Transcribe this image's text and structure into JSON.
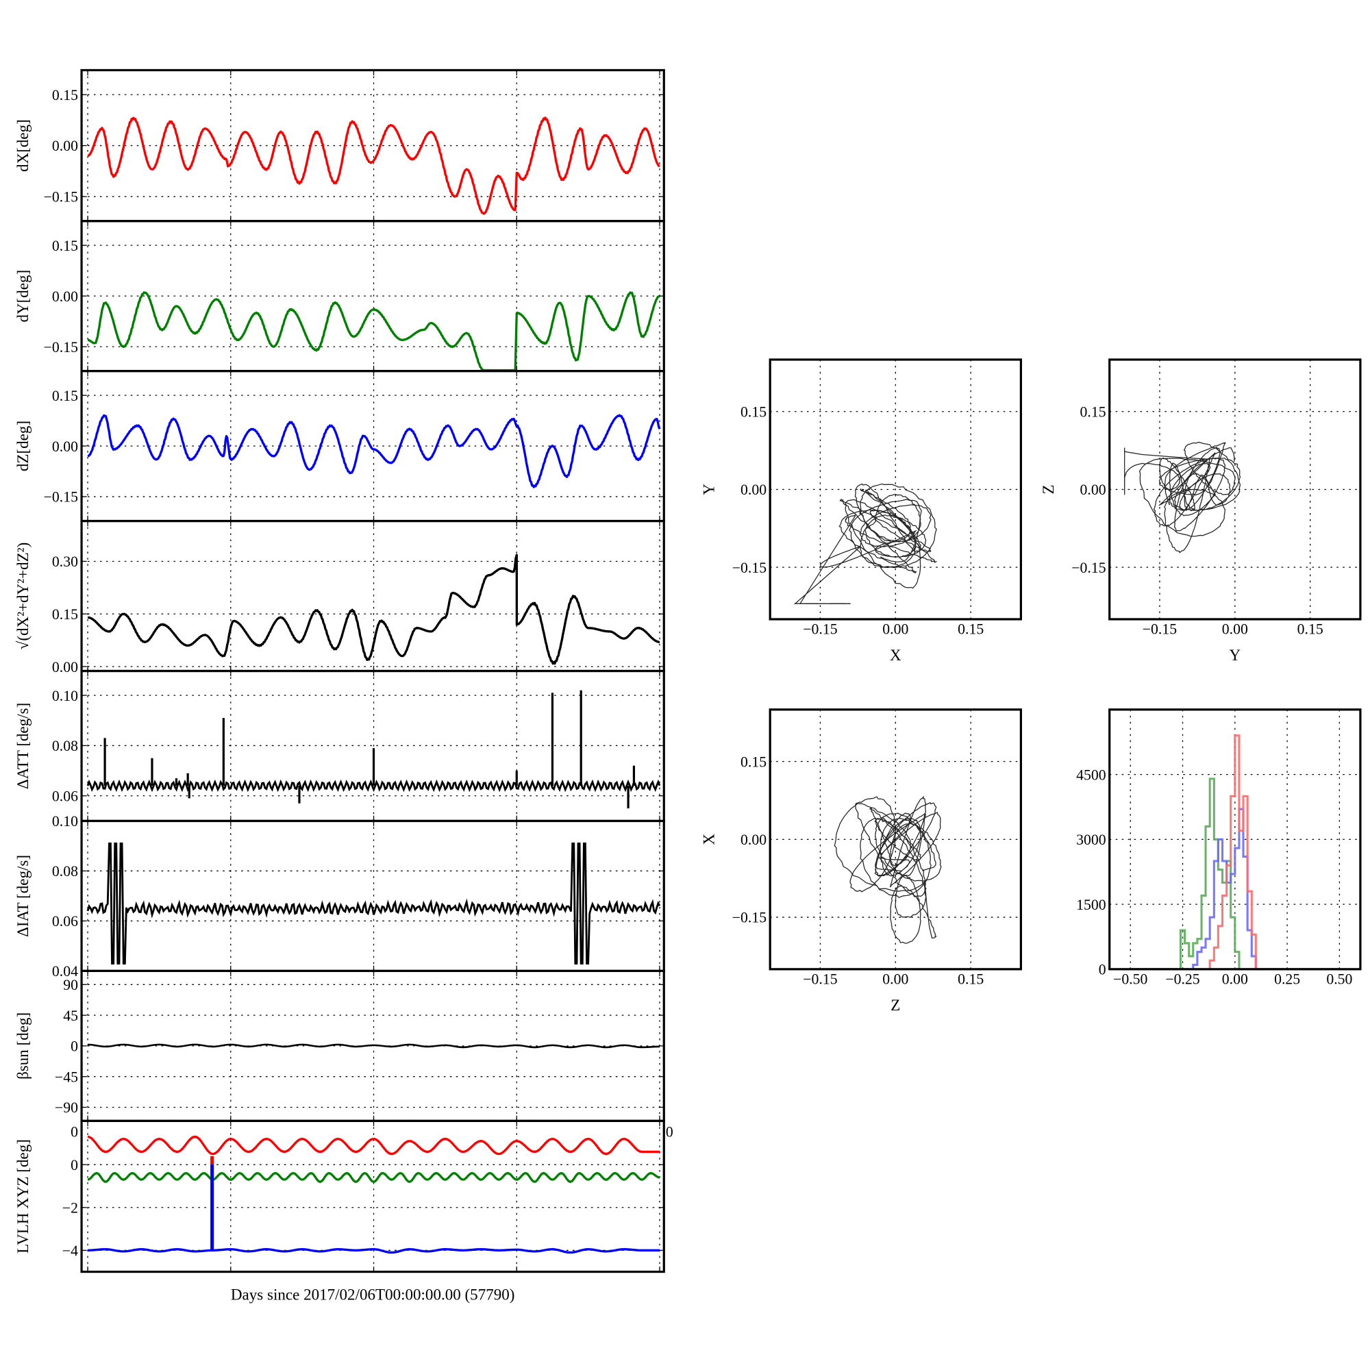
{
  "xlabel": "Days since 2017/02/06T00:00:00.00 (57790)",
  "chart_data": [
    {
      "id": "dx",
      "type": "line",
      "ylabel": "dX[deg]",
      "ylim": [
        -0.222,
        0.222
      ],
      "xlim": [
        -0.043,
        4.03
      ],
      "yticks": [
        0.15,
        0.0,
        -0.15
      ],
      "ytick_labels": [
        "0.15",
        "0.00",
        "−0.15"
      ],
      "series": [
        {
          "name": "dX",
          "color": "#ff0000",
          "x": [
            0,
            0.1,
            0.18,
            0.32,
            0.45,
            0.58,
            0.7,
            0.82,
            0.97,
            0.98,
            1.1,
            1.25,
            1.35,
            1.48,
            1.6,
            1.73,
            1.85,
            1.98,
            2.12,
            2.27,
            2.4,
            2.57,
            2.65,
            2.77,
            2.87,
            2.99,
            3.0,
            3.04,
            3.2,
            3.32,
            3.45,
            3.5,
            3.62,
            3.77,
            3.9,
            4.0
          ],
          "y": [
            -0.03,
            0.05,
            -0.09,
            0.08,
            -0.07,
            0.07,
            -0.07,
            0.05,
            -0.04,
            -0.06,
            0.04,
            -0.07,
            0.04,
            -0.11,
            0.04,
            -0.11,
            0.07,
            -0.05,
            0.06,
            -0.04,
            0.04,
            -0.15,
            -0.07,
            -0.2,
            -0.09,
            -0.19,
            -0.08,
            -0.1,
            0.08,
            -0.1,
            0.05,
            -0.07,
            0.03,
            -0.08,
            0.05,
            -0.06
          ]
        }
      ]
    },
    {
      "id": "dy",
      "type": "line",
      "ylabel": "dY[deg]",
      "ylim": [
        -0.222,
        0.222
      ],
      "xlim": [
        -0.043,
        4.03
      ],
      "yticks": [
        0.15,
        0.0,
        -0.15
      ],
      "ytick_labels": [
        "0.15",
        "0.00",
        "−0.15"
      ],
      "series": [
        {
          "name": "dY",
          "color": "#008000",
          "x": [
            0,
            0.05,
            0.12,
            0.25,
            0.4,
            0.52,
            0.62,
            0.75,
            0.9,
            1.05,
            1.18,
            1.3,
            1.42,
            1.6,
            1.73,
            1.86,
            2.0,
            2.2,
            2.35,
            2.4,
            2.55,
            2.65,
            2.77,
            2.99,
            3.0,
            3.2,
            3.3,
            3.42,
            3.5,
            3.68,
            3.8,
            3.88,
            4.0
          ],
          "y": [
            -0.13,
            -0.14,
            -0.02,
            -0.15,
            0.01,
            -0.1,
            -0.03,
            -0.11,
            -0.01,
            -0.13,
            -0.05,
            -0.15,
            -0.04,
            -0.16,
            -0.02,
            -0.12,
            -0.04,
            -0.13,
            -0.1,
            -0.08,
            -0.15,
            -0.11,
            -0.22,
            -0.22,
            -0.05,
            -0.14,
            -0.02,
            -0.19,
            0.0,
            -0.1,
            0.01,
            -0.12,
            0.0
          ]
        }
      ]
    },
    {
      "id": "dz",
      "type": "line",
      "ylabel": "dZ[deg]",
      "ylim": [
        -0.222,
        0.222
      ],
      "xlim": [
        -0.043,
        4.03
      ],
      "yticks": [
        0.15,
        0.0,
        -0.15
      ],
      "ytick_labels": [
        "0.15",
        "0.00",
        "−0.15"
      ],
      "series": [
        {
          "name": "dZ",
          "color": "#0000ff",
          "x": [
            0,
            0.12,
            0.18,
            0.35,
            0.48,
            0.6,
            0.72,
            0.85,
            0.95,
            0.97,
            1.0,
            1.15,
            1.3,
            1.42,
            1.55,
            1.7,
            1.84,
            1.93,
            2.0,
            2.12,
            2.25,
            2.38,
            2.52,
            2.6,
            2.72,
            2.82,
            2.98,
            3.0,
            3.12,
            3.25,
            3.35,
            3.45,
            3.55,
            3.72,
            3.85,
            3.98,
            4.0
          ],
          "y": [
            -0.03,
            0.09,
            -0.01,
            0.06,
            -0.04,
            0.08,
            -0.04,
            0.03,
            -0.03,
            0.03,
            -0.04,
            0.05,
            -0.03,
            0.07,
            -0.07,
            0.06,
            -0.08,
            0.03,
            -0.01,
            -0.05,
            0.05,
            -0.04,
            0.06,
            0.0,
            0.05,
            -0.01,
            0.08,
            0.06,
            -0.12,
            0.0,
            -0.09,
            0.06,
            -0.01,
            0.09,
            -0.04,
            0.08,
            0.05
          ]
        }
      ]
    },
    {
      "id": "norm",
      "type": "line",
      "ylabel": "√(dX²+dY²+dZ²)",
      "ylim": [
        -0.0125,
        0.415
      ],
      "xlim": [
        -0.043,
        4.03
      ],
      "yticks": [
        0.3,
        0.15,
        0.0
      ],
      "ytick_labels": [
        "0.30",
        "0.15",
        "0.00"
      ],
      "series": [
        {
          "name": "norm",
          "color": "#000000",
          "x": [
            0,
            0.15,
            0.25,
            0.4,
            0.52,
            0.7,
            0.82,
            0.95,
            1.02,
            1.2,
            1.35,
            1.48,
            1.6,
            1.73,
            1.85,
            1.96,
            2.05,
            2.2,
            2.3,
            2.4,
            2.5,
            2.55,
            2.7,
            2.8,
            2.9,
            2.98,
            3.0,
            3.001,
            3.12,
            3.26,
            3.4,
            3.5,
            3.65,
            3.75,
            3.85,
            4.0
          ],
          "y": [
            0.14,
            0.1,
            0.15,
            0.07,
            0.12,
            0.06,
            0.09,
            0.03,
            0.13,
            0.06,
            0.14,
            0.07,
            0.16,
            0.05,
            0.16,
            0.02,
            0.13,
            0.03,
            0.11,
            0.1,
            0.14,
            0.21,
            0.17,
            0.26,
            0.28,
            0.27,
            0.32,
            0.12,
            0.18,
            0.01,
            0.2,
            0.11,
            0.1,
            0.08,
            0.11,
            0.07
          ]
        }
      ]
    },
    {
      "id": "datt",
      "type": "line",
      "ylabel": "ΔATT [deg/s]",
      "ylim": [
        0.05,
        0.1097
      ],
      "xlim": [
        -0.043,
        4.03
      ],
      "yticks": [
        0.1,
        0.08,
        0.06
      ],
      "ytick_labels": [
        "0.10",
        "0.08",
        "0.06"
      ],
      "baseline": 0.064,
      "spikes": {
        "x": [
          0.12,
          0.45,
          0.62,
          0.7,
          0.71,
          0.95,
          1.48,
          2.0,
          3.0,
          3.25,
          3.45,
          3.78,
          3.82
        ],
        "y": [
          0.083,
          0.075,
          0.067,
          0.069,
          0.059,
          0.091,
          0.057,
          0.079,
          0.07,
          0.101,
          0.102,
          0.055,
          0.072
        ]
      },
      "series": [
        {
          "name": "dATT",
          "color": "#000000"
        }
      ]
    },
    {
      "id": "diat",
      "type": "line",
      "ylabel": "ΔIAT [deg/s]",
      "ylim": [
        0.04,
        0.1
      ],
      "xlim": [
        -0.043,
        4.03
      ],
      "yticks": [
        0.1,
        0.08,
        0.06,
        0.04
      ],
      "ytick_labels": [
        "0.10",
        "0.08",
        "0.06",
        "0.04"
      ],
      "baseline": 0.064,
      "bursts": [
        {
          "from": 0.15,
          "to": 0.27,
          "min": 0.043,
          "max": 0.091
        },
        {
          "from": 3.38,
          "to": 3.5,
          "min": 0.043,
          "max": 0.091
        }
      ],
      "series": [
        {
          "name": "dIAT",
          "color": "#000000"
        }
      ]
    },
    {
      "id": "beta",
      "type": "line",
      "ylabel": "βsun [deg]",
      "ylim": [
        -110,
        110
      ],
      "xlim": [
        -0.043,
        4.03
      ],
      "yticks": [
        90,
        45,
        0,
        -45,
        -90
      ],
      "ytick_labels": [
        "90",
        "45",
        "0",
        "−45",
        "−90"
      ],
      "series": [
        {
          "name": "beta_sun",
          "color": "#000000",
          "dx": 0.125,
          "y": [
            2,
            -1,
            2,
            -1,
            2,
            -1,
            2,
            -1,
            2,
            -1,
            2,
            -1,
            2,
            -1,
            2,
            -1,
            1,
            -1,
            2,
            -1,
            1,
            -2,
            1,
            -1,
            1,
            -2,
            1,
            -2,
            1,
            -2,
            1,
            -2,
            -1
          ]
        }
      ]
    },
    {
      "id": "lvlh",
      "type": "line",
      "ylabel": "LVLH XYZ [deg]",
      "ylim": [
        -5,
        2.04
      ],
      "xlim": [
        -0.043,
        4.03
      ],
      "yticks": [
        0,
        -2,
        -4
      ],
      "ytick_labels": [
        "0",
        "−2",
        "−4"
      ],
      "corner_labels": [
        "0",
        "0"
      ],
      "series": [
        {
          "name": "X",
          "color": "#ff0000",
          "dx": 0.125,
          "y": [
            1.3,
            0.6,
            1.2,
            0.6,
            1.2,
            0.6,
            1.3,
            0.5,
            1.2,
            0.6,
            1.2,
            0.6,
            1.2,
            0.6,
            1.2,
            0.6,
            1.2,
            0.5,
            1.1,
            0.6,
            1.2,
            0.6,
            1.1,
            0.5,
            1.1,
            0.6,
            1.2,
            0.6,
            1.2,
            0.5,
            1.2,
            0.6,
            0.6
          ]
        },
        {
          "name": "Y",
          "color": "#008000",
          "dx": 0.0625,
          "y": [
            -0.7,
            -0.4,
            -0.8,
            -0.4,
            -0.7,
            -0.4,
            -0.7,
            -0.4,
            -0.7,
            -0.4,
            -0.7,
            -0.4,
            -0.7,
            -0.4,
            -0.7,
            -0.4,
            -0.7,
            -0.4,
            -0.7,
            -0.4,
            -0.7,
            -0.4,
            -0.7,
            -0.4,
            -0.7,
            -0.4,
            -0.8,
            -0.4,
            -0.7,
            -0.4,
            -0.8,
            -0.4,
            -0.8,
            -0.4,
            -0.7,
            -0.4,
            -0.8,
            -0.4,
            -0.7,
            -0.4,
            -0.7,
            -0.4,
            -0.7,
            -0.4,
            -0.7,
            -0.4,
            -0.7,
            -0.4,
            -0.7,
            -0.4,
            -0.8,
            -0.4,
            -0.7,
            -0.4,
            -0.8,
            -0.4,
            -0.7,
            -0.4,
            -0.7,
            -0.4,
            -0.7,
            -0.4,
            -0.7,
            -0.4,
            -0.6
          ]
        },
        {
          "name": "Z",
          "color": "#0000ff",
          "dx": 0.125,
          "y": [
            -4.0,
            -3.95,
            -4.05,
            -3.95,
            -4.05,
            -3.95,
            -4.05,
            -4.0,
            -3.95,
            -4.05,
            -3.95,
            -4.05,
            -3.95,
            -4.05,
            -3.95,
            -4.0,
            -3.95,
            -4.1,
            -3.95,
            -4.05,
            -3.95,
            -4.0,
            -3.95,
            -4.0,
            -3.97,
            -4.05,
            -3.95,
            -4.1,
            -3.95,
            -4.05,
            -3.95,
            -4.0,
            -4.0
          ]
        }
      ],
      "event": {
        "x": 0.87,
        "y_top": 0.4,
        "y_bottom": -4.0
      }
    },
    {
      "id": "xy",
      "type": "scatter",
      "xlabel": "X",
      "ylabel": "Y",
      "x_of": "dx",
      "y_of": "dy",
      "xlim": [
        -0.25,
        0.25
      ],
      "ylim": [
        -0.25,
        0.25
      ],
      "ticks": [
        -0.15,
        0.0,
        0.15
      ],
      "tick_labels": [
        "−0.15",
        "0.00",
        "0.15"
      ]
    },
    {
      "id": "yz",
      "type": "scatter",
      "xlabel": "Y",
      "ylabel": "Z",
      "x_of": "dy",
      "y_of": "dz",
      "xlim": [
        -0.25,
        0.25
      ],
      "ylim": [
        -0.25,
        0.25
      ],
      "ticks": [
        -0.15,
        0.0,
        0.15
      ],
      "tick_labels": [
        "−0.15",
        "0.00",
        "0.15"
      ]
    },
    {
      "id": "zx",
      "type": "scatter",
      "xlabel": "Z",
      "ylabel": "X",
      "x_of": "dz",
      "y_of": "dx",
      "xlim": [
        -0.25,
        0.25
      ],
      "ylim": [
        -0.25,
        0.25
      ],
      "ticks": [
        -0.15,
        0.0,
        0.15
      ],
      "tick_labels": [
        "−0.15",
        "0.00",
        "0.15"
      ]
    },
    {
      "id": "hist",
      "type": "bar",
      "xlim": [
        -0.6,
        0.6
      ],
      "ylim": [
        0,
        6000
      ],
      "xticks": [
        -0.5,
        -0.25,
        0.0,
        0.25,
        0.5
      ],
      "xtick_labels": [
        "−0.50",
        "−0.25",
        "0.00",
        "0.25",
        "0.50"
      ],
      "yticks": [
        4500,
        3000,
        1500,
        0
      ],
      "ytick_labels": [
        "4500",
        "3000",
        "1500",
        "0"
      ],
      "bin_start": -0.28,
      "bin_width": 0.02,
      "series": [
        {
          "name": "dY",
          "color": "#5aac5a",
          "counts": [
            0,
            900,
            600,
            300,
            600,
            700,
            1700,
            3300,
            4400,
            3000,
            2300,
            2000,
            2500,
            1200,
            400,
            0,
            0,
            0,
            0,
            0
          ]
        },
        {
          "name": "dZ",
          "color": "#6a6aff",
          "counts": [
            0,
            0,
            0,
            0,
            100,
            400,
            500,
            700,
            1200,
            2500,
            3000,
            2500,
            2000,
            2200,
            2800,
            3700,
            2600,
            900,
            300,
            0
          ]
        },
        {
          "name": "dX",
          "color": "#ff6a6a",
          "counts": [
            0,
            0,
            0,
            0,
            0,
            0,
            0,
            0,
            200,
            500,
            1000,
            1700,
            2400,
            4000,
            5400,
            3200,
            4000,
            1800,
            800,
            0
          ]
        }
      ]
    }
  ]
}
